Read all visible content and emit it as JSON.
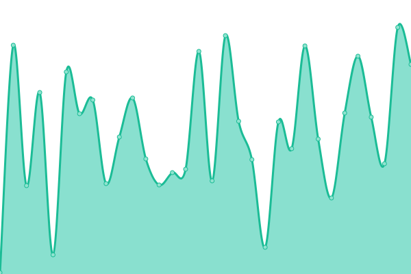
{
  "chart_data": {
    "type": "area",
    "title": "",
    "xlabel": "",
    "ylabel": "",
    "x": [
      0,
      1,
      2,
      3,
      4,
      5,
      6,
      7,
      8,
      9,
      10,
      11,
      12,
      13,
      14,
      15,
      16,
      17,
      18,
      19,
      20,
      21,
      22,
      23,
      24,
      25,
      26,
      27,
      28,
      29,
      30,
      31
    ],
    "series": [
      {
        "values": [
          2,
          334,
          129,
          265,
          28,
          295,
          234,
          254,
          132,
          200,
          257,
          168,
          130,
          148,
          153,
          325,
          136,
          348,
          223,
          167,
          39,
          222,
          183,
          333,
          197,
          111,
          235,
          318,
          229,
          161,
          360,
          306
        ]
      }
    ],
    "ylim": [
      0,
      400
    ],
    "curve": "smooth",
    "markers": true,
    "axes_visible": false,
    "grid": false,
    "legend": "none",
    "colors": {
      "line": "#1bbc96",
      "fill": "#89e0cf",
      "marker_fill": "#8fe3cf",
      "marker_stroke": "#1bbc96"
    }
  }
}
